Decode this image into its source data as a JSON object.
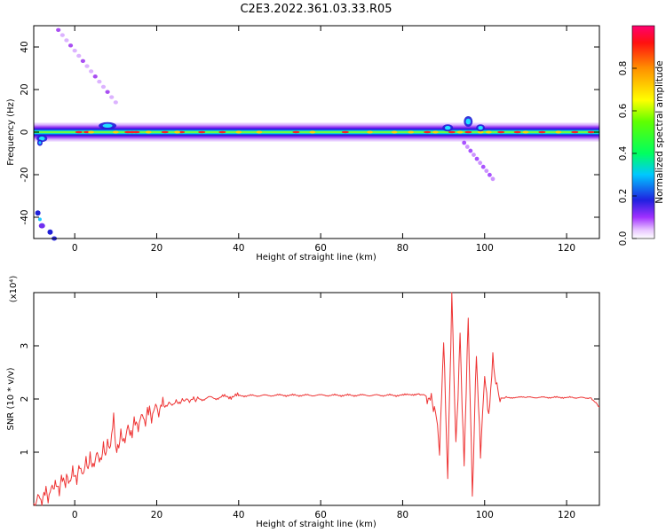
{
  "title": "C2E3.2022.361.03.33.R05",
  "chart_data": [
    {
      "type": "heatmap",
      "xlabel": "Height of straight line (km)",
      "ylabel": "Frequency (Hz)",
      "xlim": [
        -10,
        128
      ],
      "ylim": [
        -50,
        50
      ],
      "xticks": [
        0,
        20,
        40,
        60,
        80,
        100,
        120
      ],
      "yticks": [
        -40,
        -20,
        0,
        20,
        40
      ],
      "colorbar": {
        "label": "Normalized spectral amplitude",
        "range": [
          0,
          1
        ],
        "ticks": [
          0.0,
          0.2,
          0.4,
          0.6,
          0.8
        ]
      },
      "features": {
        "main_band": {
          "x_range": [
            -10,
            128
          ],
          "center_hz": 0,
          "core_halfwidth_hz": 1.5,
          "outer_halfwidth_hz": 4.5
        },
        "upper_streak": {
          "x": [
            -4,
            10
          ],
          "y": [
            48,
            14
          ]
        },
        "lower_streak": {
          "x": [
            95,
            102
          ],
          "y": [
            -5,
            -22
          ]
        },
        "bottom_left_blobs": {
          "x": [
            -10,
            -4
          ],
          "y": [
            -35,
            -50
          ]
        }
      }
    },
    {
      "type": "line",
      "xlabel": "Height of straight line (km)",
      "ylabel": "SNR (10 * v/v)",
      "y_scale_note": "(x10⁴)",
      "xlim": [
        -10,
        128
      ],
      "ylim": [
        0,
        4
      ],
      "xticks": [
        0,
        20,
        40,
        60,
        80,
        100,
        120
      ],
      "yticks": [
        1,
        2,
        3
      ],
      "color": "#ee3333",
      "series": [
        {
          "x": [
            -10,
            -8,
            -5,
            -2,
            0,
            3,
            5,
            8,
            9,
            9.5,
            10,
            12,
            14,
            16,
            18,
            20,
            22,
            24,
            27,
            30,
            35,
            40,
            50,
            60,
            70,
            80,
            84,
            86,
            88,
            89,
            90,
            91,
            92,
            93,
            94,
            95,
            96,
            97,
            98,
            99,
            100,
            101,
            102,
            103,
            104,
            106,
            110,
            120,
            126,
            128
          ],
          "y": [
            0.05,
            0.15,
            0.3,
            0.5,
            0.55,
            0.75,
            0.85,
            1.05,
            1.25,
            1.7,
            1.1,
            1.3,
            1.45,
            1.6,
            1.7,
            1.8,
            1.88,
            1.92,
            1.97,
            2.0,
            2.03,
            2.06,
            2.07,
            2.07,
            2.07,
            2.07,
            2.1,
            2.05,
            1.85,
            0.95,
            3.05,
            0.5,
            3.95,
            1.1,
            3.2,
            0.8,
            3.6,
            0.2,
            2.8,
            0.9,
            2.4,
            1.6,
            2.7,
            2.2,
            2.02,
            2.03,
            2.03,
            2.03,
            2.02,
            1.85
          ]
        }
      ]
    }
  ]
}
